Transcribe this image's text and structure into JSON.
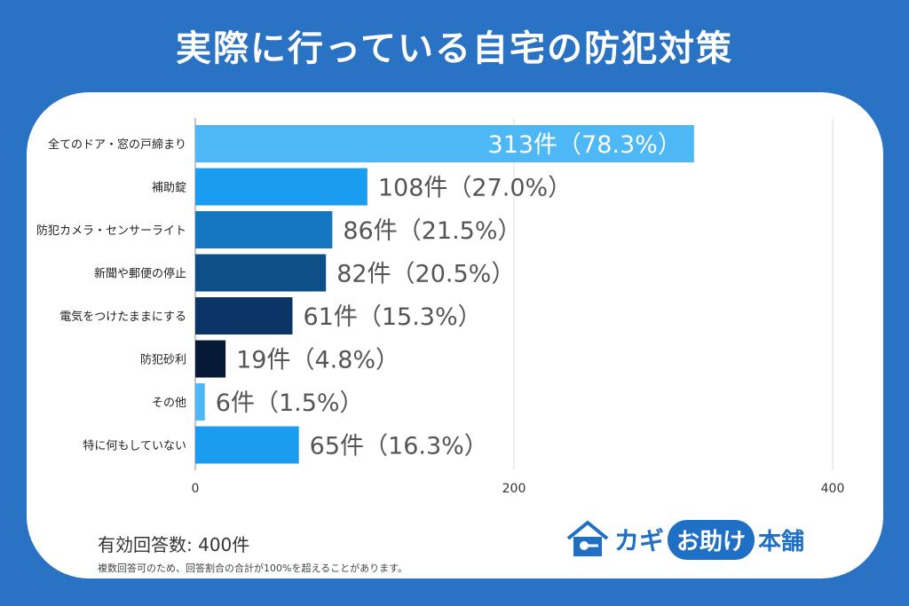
{
  "title": "実際に行っている自宅の防犯対策",
  "chart_data": {
    "type": "bar",
    "orientation": "horizontal",
    "categories": [
      "全てのドア・窓の戸締まり",
      "補助錠",
      "防犯カメラ・センサーライト",
      "新聞や郵便の停止",
      "電気をつけたままにする",
      "防犯砂利",
      "その他",
      "特に何もしていない"
    ],
    "values": [
      313,
      108,
      86,
      82,
      61,
      19,
      6,
      65
    ],
    "data_labels": [
      "313件（78.3%）",
      "108件（27.0%）",
      "86件（21.5%）",
      "82件（20.5%）",
      "61件（15.3%）",
      "19件（4.8%）",
      "6件（1.5%）",
      "65件（16.3%）"
    ],
    "bar_colors": [
      "#4db8f5",
      "#1a9cf0",
      "#1577c0",
      "#0d4f86",
      "#0a3566",
      "#061a38",
      "#4db8f5",
      "#1a9cf0"
    ],
    "xlim": [
      0,
      400
    ],
    "xticks": [
      "0",
      "200",
      "400"
    ],
    "grid": true
  },
  "footer": {
    "respondents": "有効回答数: 400件",
    "note": "複数回答可のため、回答割合の合計が100%を超えることがあります。"
  },
  "logo": {
    "part1": "カギ",
    "part2": "お助け",
    "part3": "本舗"
  }
}
